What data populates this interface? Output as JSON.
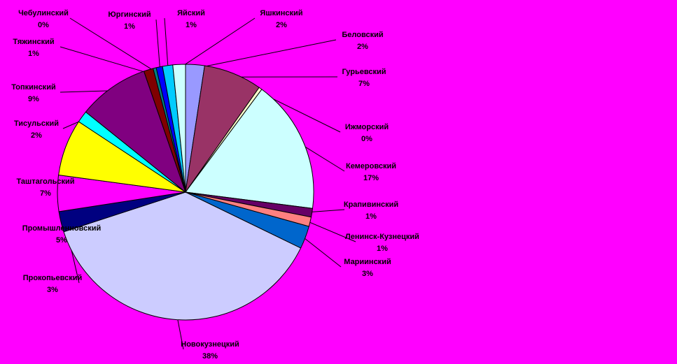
{
  "chart_data": {
    "type": "pie",
    "categories": [
      "Беловский",
      "Гурьевский",
      "Ижморский",
      "Кемеровский",
      "Крапивинский",
      "Ленинск-Кузнецкий",
      "Мариинский",
      "Новокузнецкий",
      "Прокопьевский",
      "Промышленновский",
      "Таштагольский",
      "Тисульский",
      "Топкинский",
      "Тяжинский",
      "Чебулинский",
      "Юргинский",
      "Яйский",
      "Яшкинский"
    ],
    "values": [
      2.4,
      7.4,
      0.4,
      17,
      1.1,
      1.2,
      2.9,
      38,
      2.6,
      4.6,
      7.2,
      1.5,
      9,
      1.2,
      0.4,
      0.8,
      1.3,
      1.6
    ],
    "value_labels": [
      "2%",
      "7%",
      "0%",
      "17%",
      "1%",
      "1%",
      "3%",
      "38%",
      "3%",
      "5%",
      "7%",
      "2%",
      "9%",
      "1%",
      "0%",
      "1%",
      "1%",
      "2%"
    ],
    "colors": [
      "#9999ff",
      "#993366",
      "#ffffcc",
      "#ccffff",
      "#660066",
      "#ff8080",
      "#0066cc",
      "#ccccff",
      "#000080",
      "#ff00ff",
      "#ffff00",
      "#00ffff",
      "#800080",
      "#800000",
      "#008080",
      "#0000ff",
      "#00ccff",
      "#ccffff"
    ]
  }
}
